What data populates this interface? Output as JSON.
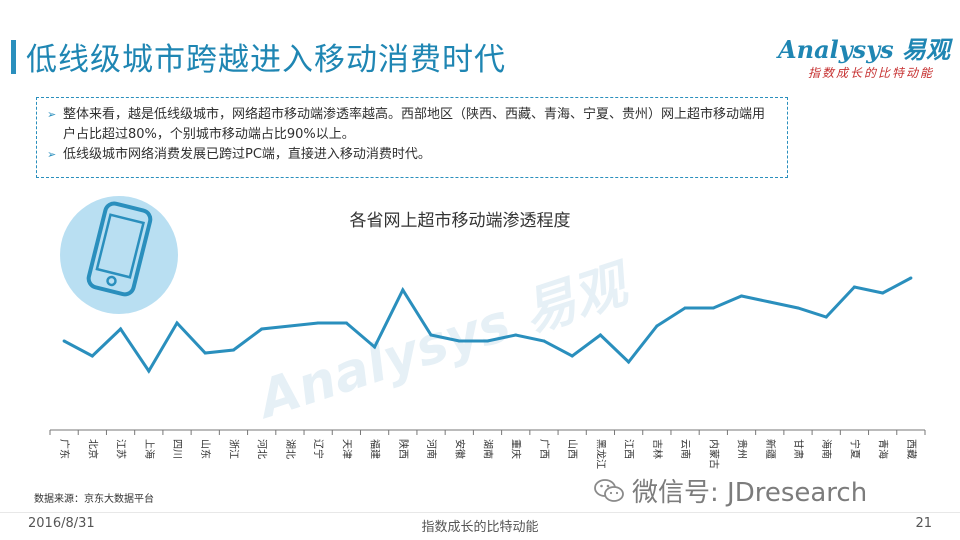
{
  "header": {
    "title": "低线级城市跨越进入移动消费时代",
    "logo_main": "Analysys 易观",
    "logo_tagline": "指数成长的比特动能"
  },
  "summary": {
    "bullets": [
      "整体来看，越是低线级城市，网络超市移动端渗透率越高。西部地区（陕西、西藏、青海、宁夏、贵州）网上超市移动端用户占比超过80%，个别城市移动端占比90%以上。",
      "低线级城市网络消费发展已跨过PC端，直接进入移动消费时代。"
    ]
  },
  "chart_data": {
    "type": "line",
    "title": "各省网上超市移动端渗透程度",
    "xlabel": "",
    "ylabel": "",
    "grid": false,
    "legend": "none",
    "color": "#2a8fbd",
    "categories": [
      "广东",
      "北京",
      "江苏",
      "上海",
      "四川",
      "山东",
      "浙江",
      "河北",
      "湖北",
      "辽宁",
      "天津",
      "福建",
      "陕西",
      "河南",
      "安徽",
      "湖南",
      "重庆",
      "广西",
      "山西",
      "黑龙江",
      "江西",
      "吉林",
      "云南",
      "内蒙古",
      "贵州",
      "新疆",
      "甘肃",
      "海南",
      "宁夏",
      "青海",
      "西藏"
    ],
    "values": [
      68,
      63,
      72,
      58,
      74,
      64,
      65,
      72,
      73,
      74,
      74,
      66,
      85,
      70,
      68,
      68,
      70,
      68,
      63,
      70,
      61,
      73,
      79,
      79,
      83,
      81,
      79,
      76,
      86,
      84,
      89
    ],
    "ylim": [
      40,
      95
    ]
  },
  "source": "数据来源：京东大数据平台",
  "watermark": "Analysys 易观",
  "wechat": "微信号: JDresearch",
  "footer": {
    "date": "2016/8/31",
    "center": "指数成长的比特动能",
    "page": "21"
  }
}
